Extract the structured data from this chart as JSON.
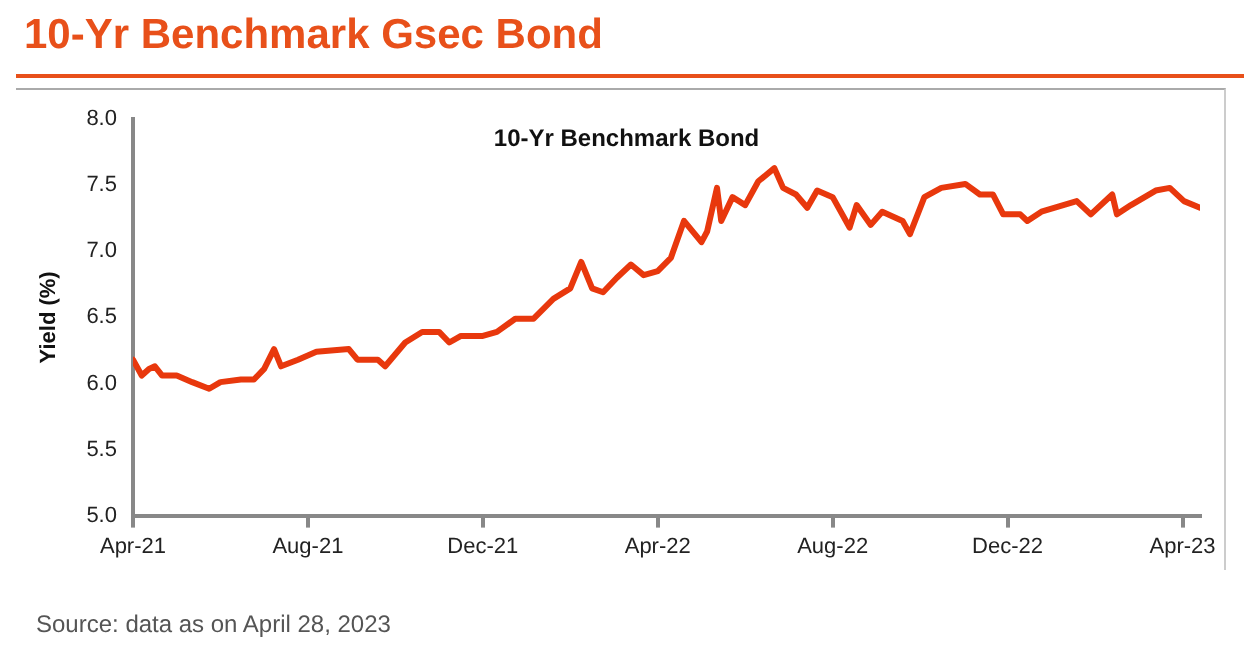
{
  "chart_data": {
    "type": "line",
    "title": "10-Yr Benchmark Gsec Bond",
    "subtitle": "10-Yr Benchmark Bond",
    "ylabel": "Yield (%)",
    "annotations": [
      "Source: data as on April 28, 2023"
    ],
    "x": [
      "2021-04-01",
      "2021-04-07",
      "2021-04-12",
      "2021-04-16",
      "2021-04-21",
      "2021-05-01",
      "2021-05-12",
      "2021-05-24",
      "2021-06-01",
      "2021-06-15",
      "2021-06-24",
      "2021-07-01",
      "2021-07-08",
      "2021-07-13",
      "2021-07-25",
      "2021-08-07",
      "2021-08-30",
      "2021-09-05",
      "2021-09-19",
      "2021-09-24",
      "2021-10-08",
      "2021-10-20",
      "2021-11-01",
      "2021-11-08",
      "2021-11-16",
      "2021-12-01",
      "2021-12-11",
      "2021-12-24",
      "2022-01-06",
      "2022-01-20",
      "2022-02-01",
      "2022-02-08",
      "2022-02-15",
      "2022-02-22",
      "2022-03-03",
      "2022-03-13",
      "2022-03-22",
      "2022-04-01",
      "2022-04-10",
      "2022-04-19",
      "2022-05-01",
      "2022-05-05",
      "2022-05-12",
      "2022-05-15",
      "2022-05-23",
      "2022-06-01",
      "2022-06-10",
      "2022-06-21",
      "2022-06-27",
      "2022-07-06",
      "2022-07-14",
      "2022-07-21",
      "2022-08-01",
      "2022-08-13",
      "2022-08-18",
      "2022-08-28",
      "2022-09-05",
      "2022-09-19",
      "2022-09-24",
      "2022-10-04",
      "2022-10-16",
      "2022-11-02",
      "2022-11-12",
      "2022-11-21",
      "2022-11-28",
      "2022-12-10",
      "2022-12-15",
      "2022-12-25",
      "2023-01-19",
      "2023-01-29",
      "2023-02-12",
      "2023-02-15",
      "2023-02-24",
      "2023-03-13",
      "2023-03-23",
      "2023-04-02",
      "2023-04-13"
    ],
    "series": [
      {
        "color": "#e8380d",
        "values": [
          6.18,
          6.06,
          6.11,
          6.13,
          6.06,
          6.06,
          6.01,
          5.96,
          6.01,
          6.03,
          6.03,
          6.11,
          6.26,
          6.13,
          6.18,
          6.24,
          6.26,
          6.18,
          6.18,
          6.13,
          6.31,
          6.39,
          6.39,
          6.31,
          6.36,
          6.36,
          6.39,
          6.49,
          6.49,
          6.64,
          6.72,
          6.92,
          6.72,
          6.69,
          6.8,
          6.9,
          6.82,
          6.85,
          6.95,
          7.23,
          7.07,
          7.15,
          7.48,
          7.23,
          7.41,
          7.35,
          7.53,
          7.63,
          7.48,
          7.43,
          7.33,
          7.46,
          7.41,
          7.18,
          7.35,
          7.2,
          7.3,
          7.23,
          7.13,
          7.41,
          7.48,
          7.51,
          7.43,
          7.43,
          7.28,
          7.28,
          7.23,
          7.3,
          7.38,
          7.28,
          7.43,
          7.28,
          7.35,
          7.46,
          7.48,
          7.38,
          7.33
        ]
      }
    ],
    "xlim": [
      "2021-04-01",
      "2023-04-13"
    ],
    "xticks": [
      {
        "value": "2021-04",
        "label": "Apr-21"
      },
      {
        "value": "2021-08",
        "label": "Aug-21"
      },
      {
        "value": "2021-12",
        "label": "Dec-21"
      },
      {
        "value": "2022-04",
        "label": "Apr-22"
      },
      {
        "value": "2022-08",
        "label": "Aug-22"
      },
      {
        "value": "2022-12",
        "label": "Dec-22"
      },
      {
        "value": "2023-04",
        "label": "Apr-23"
      }
    ],
    "ylim": [
      5.0,
      8.0
    ],
    "yticks": [
      {
        "value": 5,
        "label": "5.0"
      },
      {
        "value": 5.5,
        "label": "5.5"
      },
      {
        "value": 6,
        "label": "6.0"
      },
      {
        "value": 6.5,
        "label": "6.5"
      },
      {
        "value": 7,
        "label": "7.0"
      },
      {
        "value": 7.5,
        "label": "7.5"
      },
      {
        "value": 8,
        "label": "8.0"
      }
    ],
    "grid": false,
    "legend": false,
    "marker": "none",
    "line_style": "solid"
  }
}
